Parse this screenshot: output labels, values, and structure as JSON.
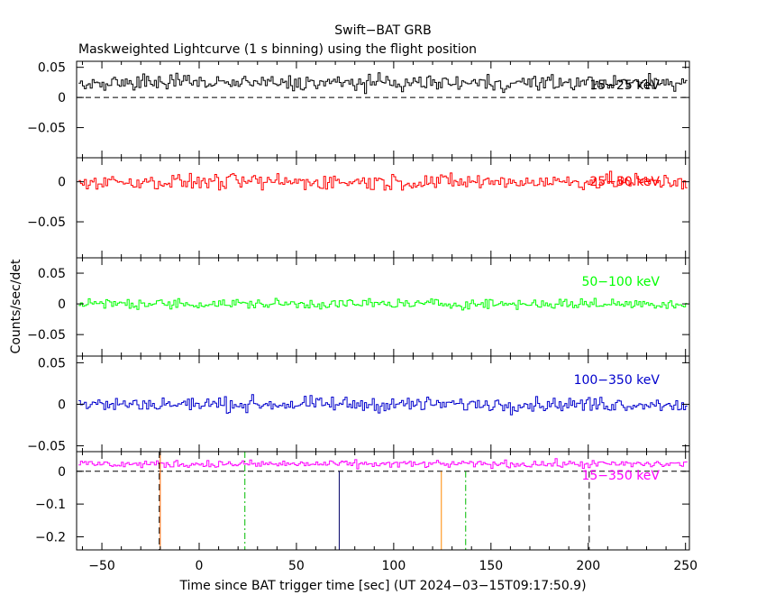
{
  "chart_data": {
    "type": "line",
    "title": "Swift−BAT GRB",
    "subtitle": "Maskweighted Lightcurve (1 s binning) using the flight position",
    "xlabel": "Time since BAT trigger time [sec] (UT 2024−03−15T09:17:50.9)",
    "ylabel": "Counts/sec/det",
    "xlim": [
      -63,
      252
    ],
    "x_ticks": [
      -50,
      0,
      50,
      100,
      150,
      200,
      250
    ],
    "x_tick_labels": [
      "−50",
      "0",
      "50",
      "100",
      "150",
      "200",
      "250"
    ],
    "x_start": -62,
    "x_end": 251,
    "bin_seconds": 1,
    "panels": [
      {
        "band_label": "15−25 keV",
        "color": "#000000",
        "ylim": [
          -0.1,
          0.06
        ],
        "y_ticks": [
          0.05,
          0,
          -0.05
        ],
        "y_tick_labels": [
          "0.05",
          "0",
          "−0.05"
        ],
        "zero_dashed": true,
        "mean": 0.024,
        "noise": 0.009
      },
      {
        "band_label": "25−50 keV",
        "color": "#ff0000",
        "ylim": [
          -0.095,
          0.03
        ],
        "y_ticks": [
          0,
          -0.05
        ],
        "y_tick_labels": [
          "0",
          "−0.05"
        ],
        "zero_dashed": false,
        "mean": 0.0,
        "noise": 0.007
      },
      {
        "band_label": "50−100 keV",
        "color": "#00ff00",
        "ylim": [
          -0.085,
          0.075
        ],
        "y_ticks": [
          0.05,
          0,
          -0.05
        ],
        "y_tick_labels": [
          "0.05",
          "0",
          "−0.05"
        ],
        "zero_dashed": false,
        "mean": 0.0,
        "noise": 0.006
      },
      {
        "band_label": "100−350 keV",
        "color": "#0000cc",
        "ylim": [
          -0.057,
          0.058
        ],
        "y_ticks": [
          0.05,
          0,
          -0.05
        ],
        "y_tick_labels": [
          "0.05",
          "0",
          "−0.05"
        ],
        "zero_dashed": false,
        "mean": 0.0,
        "noise": 0.006
      },
      {
        "band_label": "15−350 keV",
        "color": "#ff00ff",
        "ylim": [
          -0.24,
          0.06
        ],
        "y_ticks": [
          0,
          -0.1,
          -0.2
        ],
        "y_tick_labels": [
          "0",
          "−0.1",
          "−0.2"
        ],
        "zero_dashed": true,
        "mean": 0.022,
        "noise": 0.008
      }
    ],
    "markers": [
      {
        "x": -20.5,
        "color": "#000000",
        "dash": "7,5",
        "ymax": 0.06
      },
      {
        "x": -20,
        "color": "#ff6600",
        "dash": "",
        "ymax": 0.06
      },
      {
        "x": 23.5,
        "color": "#00bb00",
        "dash": "7,3,2,3",
        "ymax": 0.06
      },
      {
        "x": 72,
        "color": "#000066",
        "dash": "",
        "ymax": 0.0
      },
      {
        "x": 124.5,
        "color": "#ff8800",
        "dash": "",
        "ymax": 0.0
      },
      {
        "x": 137,
        "color": "#00bb00",
        "dash": "7,3,2,3",
        "ymax": 0.0
      },
      {
        "x": 200.5,
        "color": "#000000",
        "dash": "7,5",
        "ymax": 0.0
      }
    ]
  }
}
